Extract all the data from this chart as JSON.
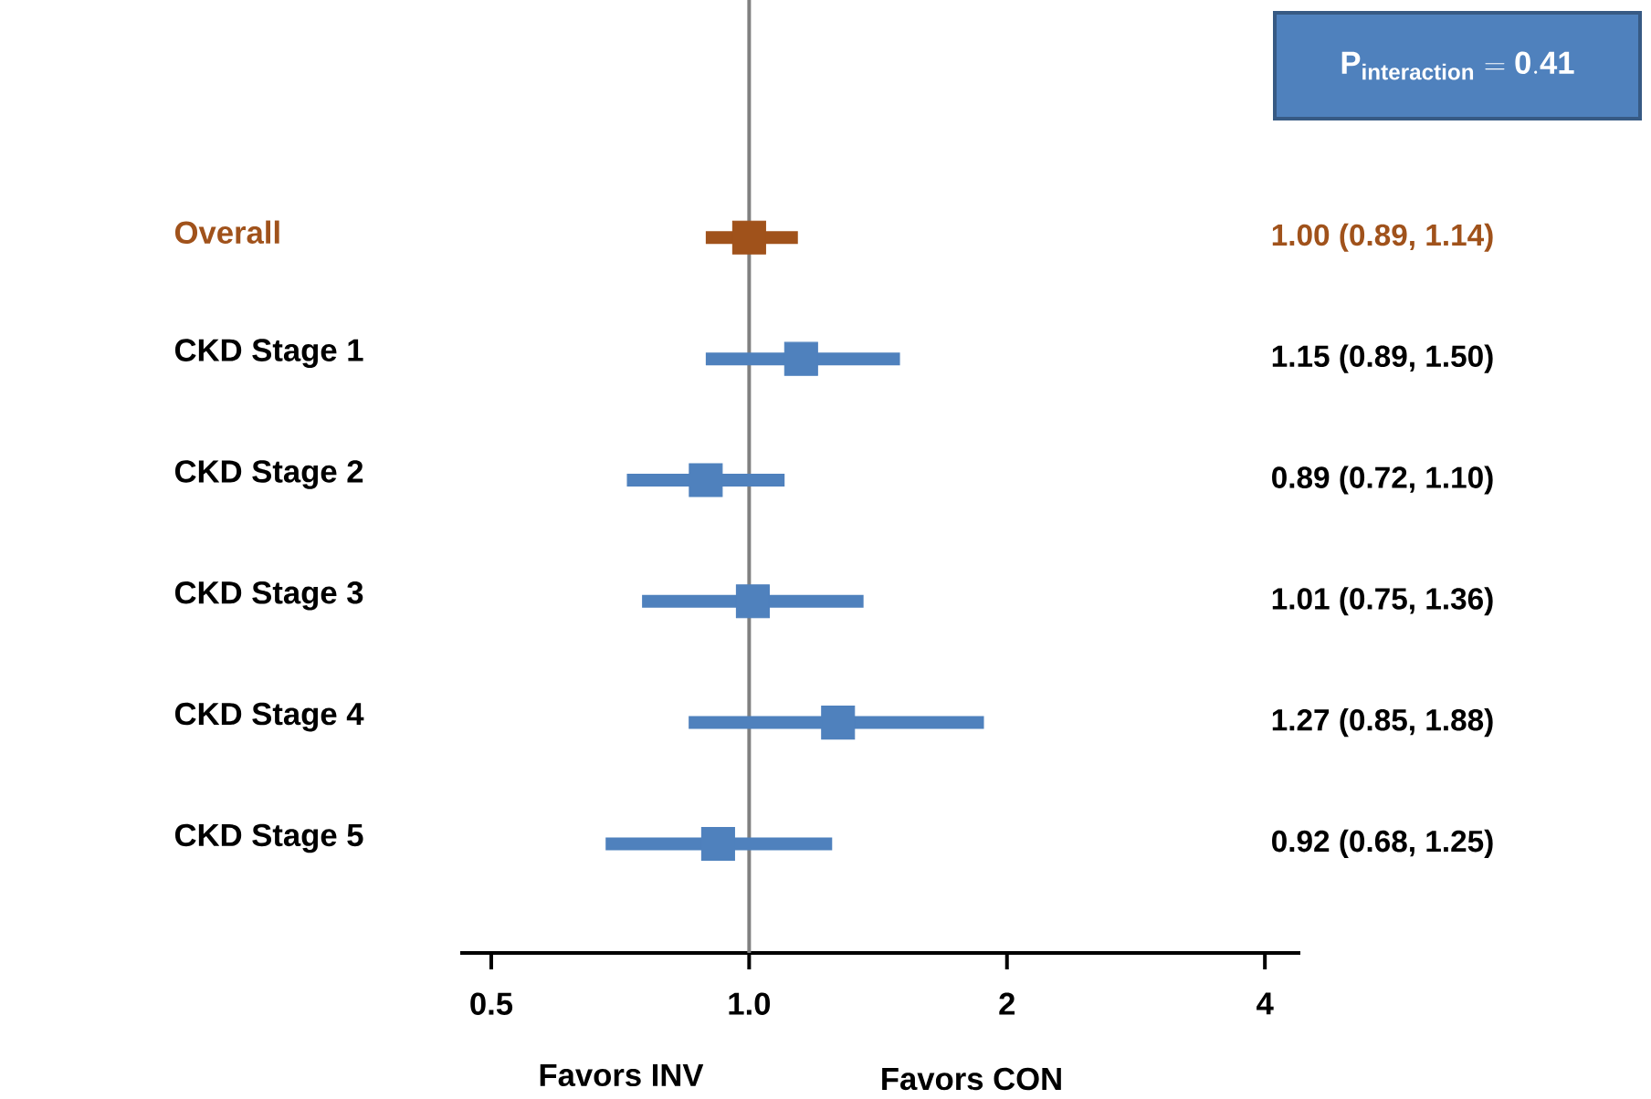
{
  "chart_data": {
    "type": "scatter",
    "orientation": "horizontal",
    "categories": [
      "Overall",
      "CKD Stage 1",
      "CKD Stage 2",
      "CKD Stage 3",
      "CKD Stage 4",
      "CKD Stage 5"
    ],
    "values": [
      1.0,
      1.15,
      0.89,
      1.01,
      1.27,
      0.92
    ],
    "errors": [
      [
        0.89,
        1.14
      ],
      [
        0.89,
        1.5
      ],
      [
        0.72,
        1.1
      ],
      [
        0.75,
        1.36
      ],
      [
        0.85,
        1.88
      ],
      [
        0.68,
        1.25
      ]
    ],
    "colors": [
      "#a0521b",
      "#4f81bd",
      "#4f81bd",
      "#4f81bd",
      "#4f81bd",
      "#4f81bd"
    ],
    "value_labels": [
      "1.00 (0.89, 1.14)",
      "1.15 (0.89, 1.50)",
      "0.89 (0.72, 1.10)",
      "1.01 (0.75, 1.36)",
      "1.27 (0.85, 1.88)",
      "0.92 (0.68, 1.25)"
    ],
    "log": "x",
    "xlim": [
      0.46,
      4.4
    ],
    "xticks": [
      0.5,
      {
        "value": 1,
        "label": "1.0"
      },
      2,
      4
    ],
    "ref_lines": [
      {
        "axis": "x",
        "value": 1,
        "color": "#808080"
      }
    ],
    "marker": "square",
    "annotations": [
      "\\mathbf{P_{interaction} = 0.41}",
      "Favors INV",
      "Favors CON"
    ]
  }
}
